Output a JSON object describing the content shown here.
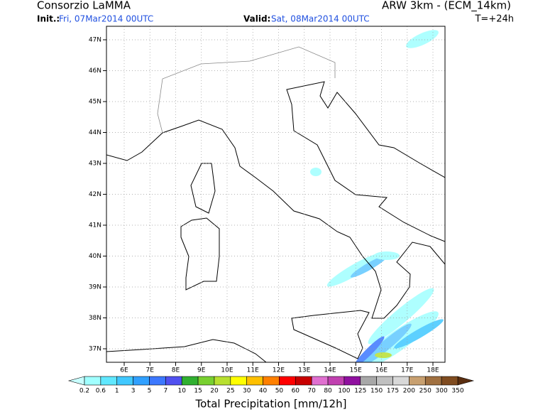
{
  "header": {
    "left_title": "Consorzio LaMMA",
    "right_title": "ARW 3km - (ECM_14km)",
    "init_label": "Init.:",
    "init_value": "Fri, 07Mar2014 00UTC",
    "valid_label": "Valid:",
    "valid_value": "Sat, 08Mar2014 00UTC",
    "forecast_time": "T=+24h"
  },
  "map": {
    "lat_labels": [
      "47N",
      "46N",
      "45N",
      "44N",
      "43N",
      "42N",
      "41N",
      "40N",
      "39N",
      "38N",
      "37N"
    ],
    "lon_labels": [
      "6E",
      "7E",
      "8E",
      "9E",
      "10E",
      "11E",
      "12E",
      "13E",
      "14E",
      "15E",
      "16E",
      "17E",
      "18E"
    ]
  },
  "legend": {
    "title": "Total Precipitation [mm/12h]",
    "labels": [
      "0.2",
      "0.6",
      "1",
      "3",
      "5",
      "7",
      "10",
      "15",
      "20",
      "25",
      "30",
      "40",
      "50",
      "60",
      "70",
      "80",
      "100",
      "125",
      "150",
      "175",
      "200",
      "250",
      "300",
      "350"
    ],
    "low_color": "#c8ffff",
    "high_color": "#5a2e10",
    "colors": [
      "#a0ffff",
      "#60e8ff",
      "#40c8ff",
      "#30a0ff",
      "#3c78ff",
      "#5050f0",
      "#30b030",
      "#78d030",
      "#b8e030",
      "#ffff00",
      "#ffc000",
      "#ff8000",
      "#ff0000",
      "#c80000",
      "#e070d0",
      "#c040b0",
      "#9010a0",
      "#a8a8a8",
      "#c0c0c0",
      "#d8d8d8",
      "#c8a070",
      "#a07040",
      "#804c20"
    ]
  }
}
